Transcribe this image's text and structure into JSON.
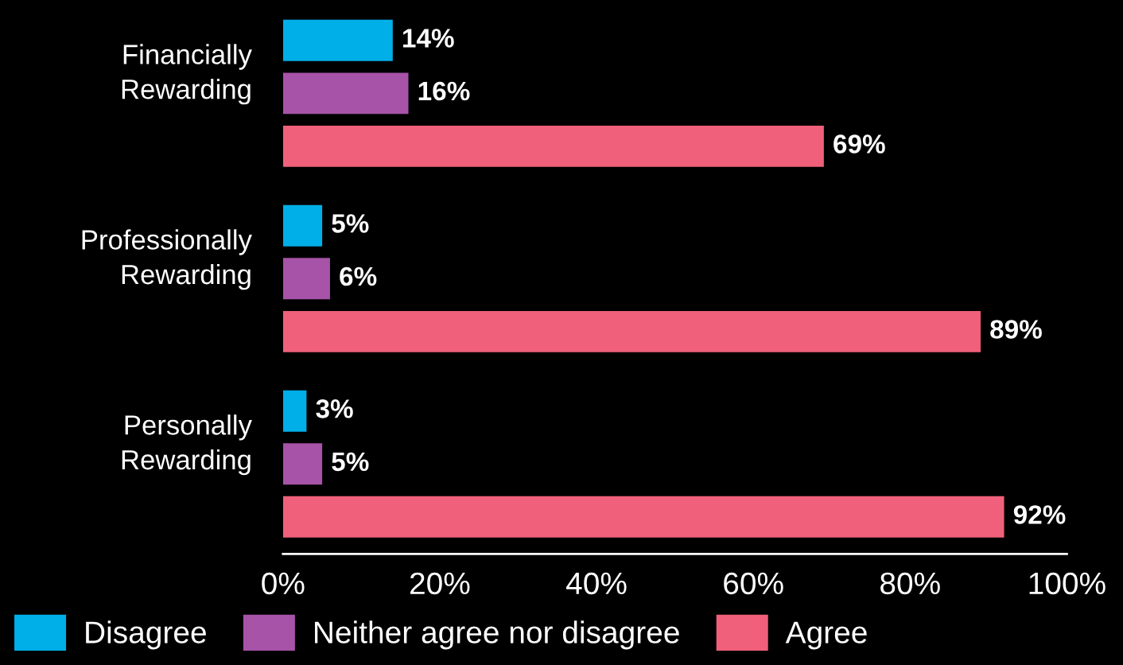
{
  "chart_data": {
    "type": "bar",
    "orientation": "horizontal",
    "categories": [
      "Financially\nRewarding",
      "Professionally\nRewarding",
      "Personally\nRewarding"
    ],
    "series": [
      {
        "name": "Disagree",
        "color": "#00aee8",
        "values": [
          14,
          5,
          3
        ],
        "value_labels": [
          "14%",
          "5%",
          "3%"
        ]
      },
      {
        "name": "Neither agree nor disagree",
        "color": "#a653a8",
        "values": [
          16,
          6,
          5
        ],
        "value_labels": [
          "16%",
          "6%",
          "5%"
        ]
      },
      {
        "name": "Agree",
        "color": "#f0607a",
        "values": [
          69,
          89,
          92
        ],
        "value_labels": [
          "69%",
          "89%",
          "92%"
        ]
      }
    ],
    "xlim": [
      0,
      100
    ],
    "xticks": [
      {
        "value": 0,
        "label": "0%"
      },
      {
        "value": 20,
        "label": "20%"
      },
      {
        "value": 40,
        "label": "40%"
      },
      {
        "value": 60,
        "label": "60%"
      },
      {
        "value": 80,
        "label": "80%"
      },
      {
        "value": 100,
        "label": "100%"
      }
    ],
    "grid": false,
    "legend": "bottom"
  }
}
